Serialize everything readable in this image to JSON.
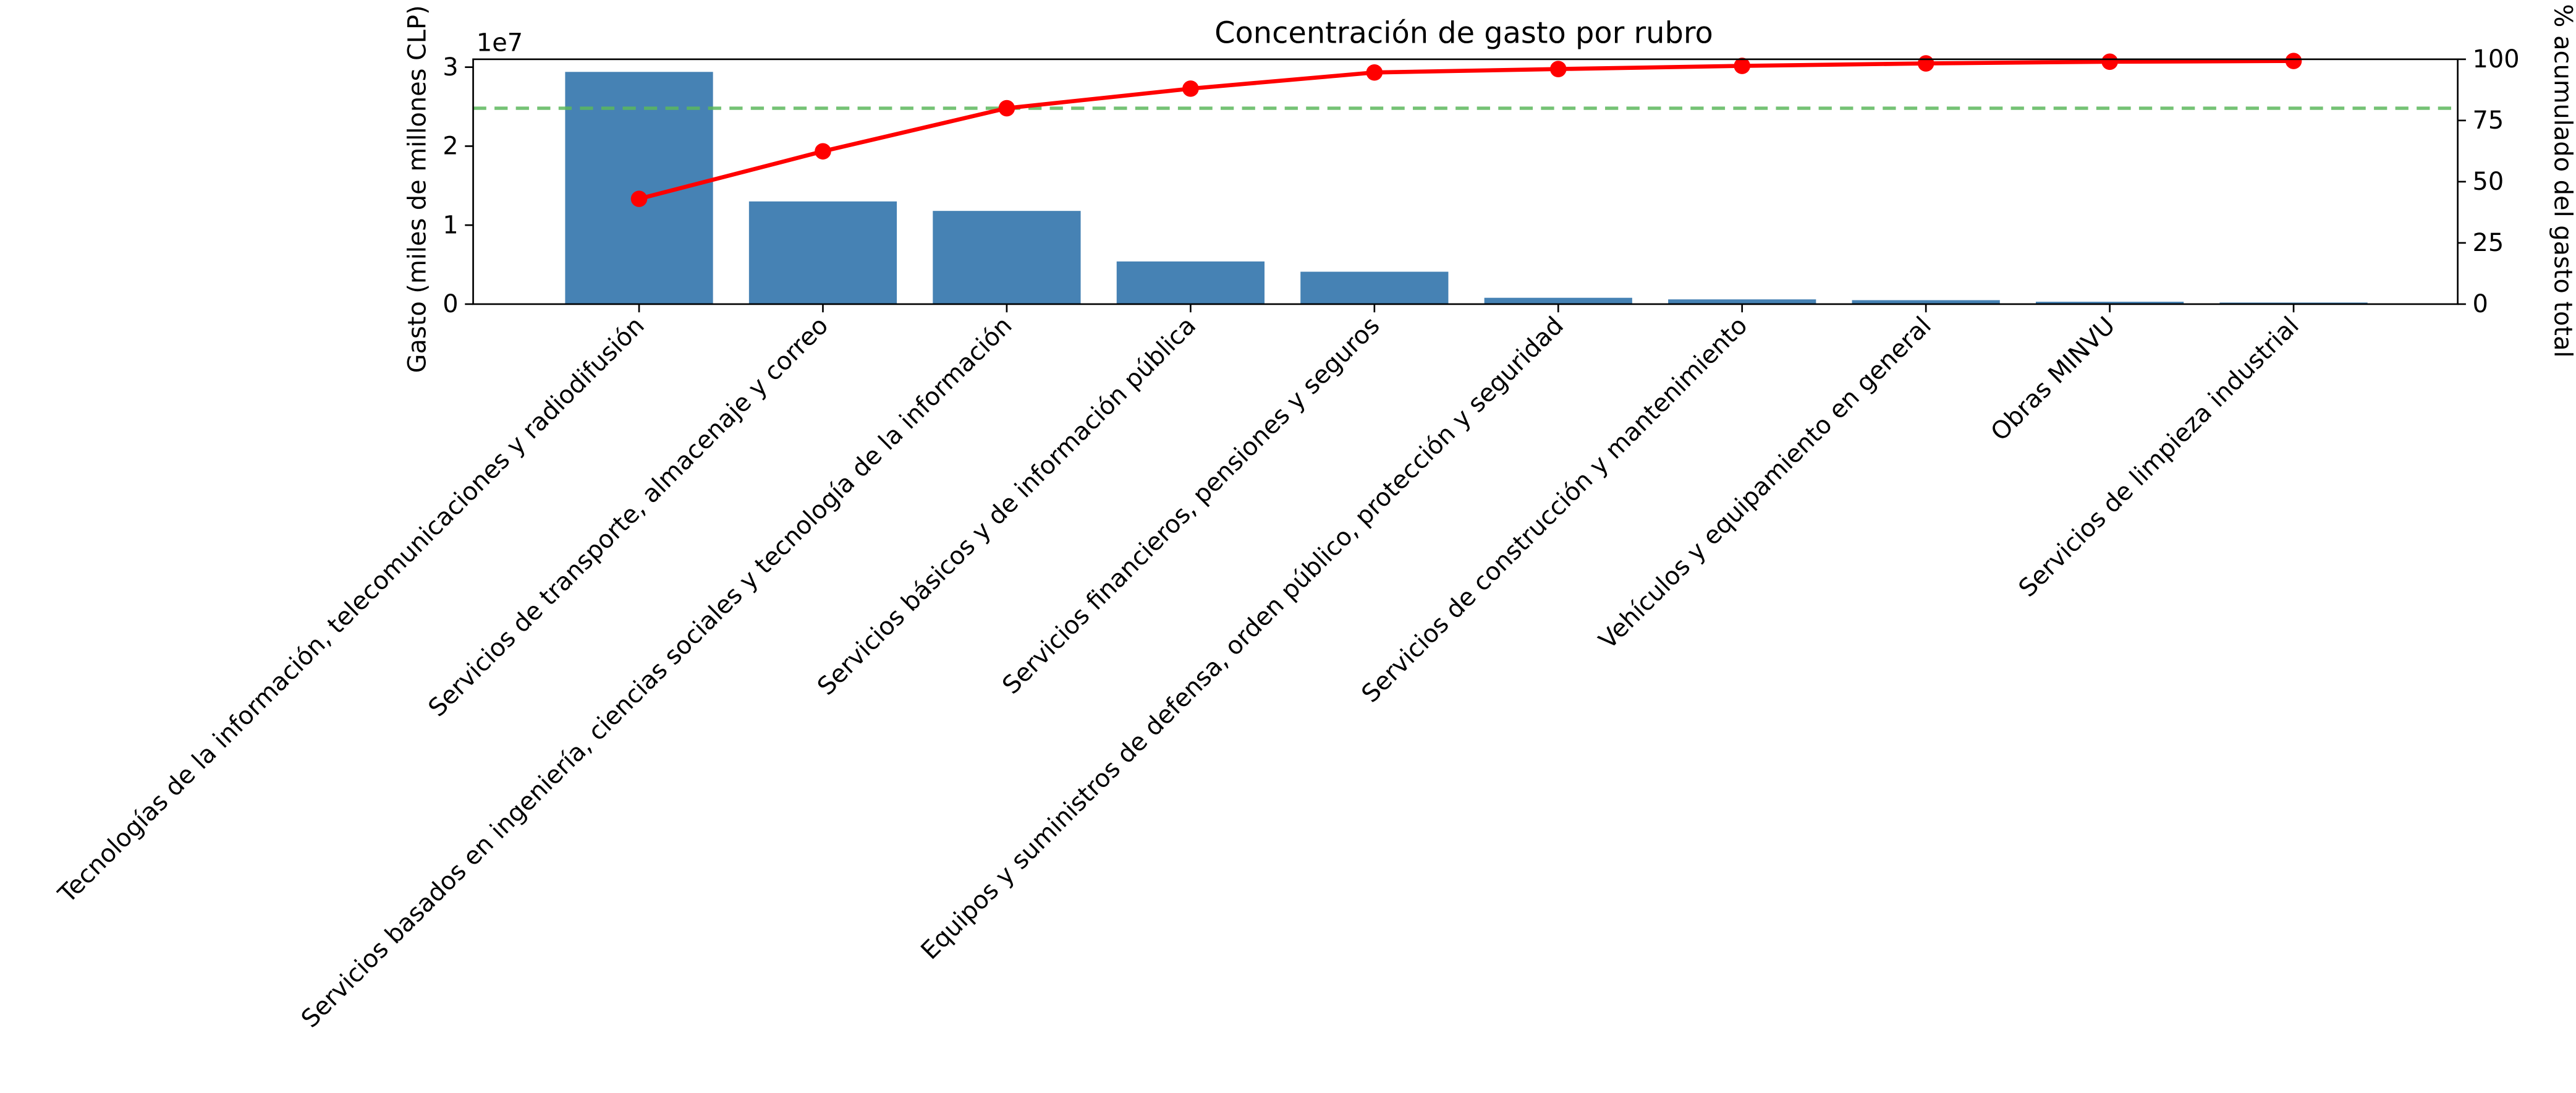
{
  "chart_data": {
    "type": "bar",
    "title": "Concentración de gasto por rubro",
    "ylabel": "Gasto (miles de millones CLP)",
    "y2label": "% acumulado del gasto total",
    "y_offset_label": "1e7",
    "categories": [
      "Tecnologías de la información, telecomunicaciones y radiodifusión",
      "Servicios de transporte, almacenaje y correo",
      "Servicios basados en ingeniería, ciencias sociales y tecnología de la información",
      "Servicios básicos y de información pública",
      "Servicios financieros, pensiones y seguros",
      "Equipos y suministros de defensa, orden público, protección y seguridad",
      "Servicios de construcción y mantenimiento",
      "Vehículos y equipamiento en general",
      "Obras MINVU",
      "Servicios de limpieza industrial"
    ],
    "series": [
      {
        "type": "bar",
        "color": "#4682b4",
        "values": [
          29400000,
          13000000,
          11800000,
          5400000,
          4100000,
          800000,
          600000,
          500000,
          300000,
          200000
        ]
      },
      {
        "type": "line",
        "axis": "y2",
        "color": "#ff0000",
        "values": [
          43,
          62.4,
          80,
          88,
          94.6,
          96,
          97.3,
          98.3,
          99,
          99.3
        ]
      }
    ],
    "ylim": [
      0,
      31000000
    ],
    "yticks": [
      0,
      {
        "value": 10000000,
        "label": "1"
      },
      {
        "value": 20000000,
        "label": "2"
      },
      {
        "value": 30000000,
        "label": "3"
      }
    ],
    "y2lim": [
      0,
      100
    ],
    "y2ticks": [
      0,
      25,
      50,
      75,
      100
    ],
    "reference_line": {
      "value": 80,
      "axis": "y2",
      "color": "#5cb85c"
    }
  }
}
